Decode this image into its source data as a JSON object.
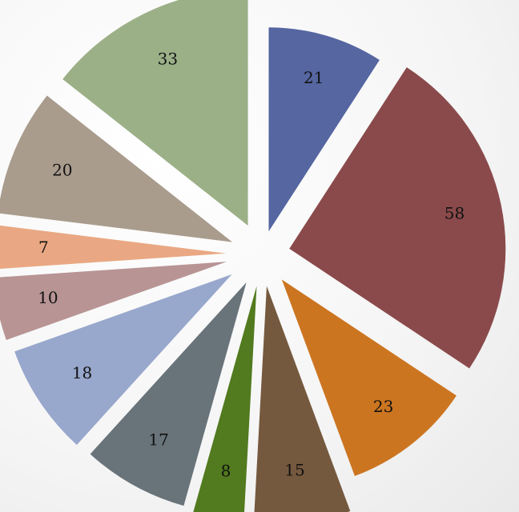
{
  "chart_data": {
    "type": "pie",
    "title": "",
    "slices": [
      {
        "value": 21,
        "label": "21",
        "color": "#5566a1"
      },
      {
        "value": 58,
        "label": "58",
        "color": "#8a4a4b"
      },
      {
        "value": 23,
        "label": "23",
        "color": "#cc7521"
      },
      {
        "value": 15,
        "label": "15",
        "color": "#75593e"
      },
      {
        "value": 8,
        "label": "8",
        "color": "#527a1f"
      },
      {
        "value": 17,
        "label": "17",
        "color": "#69737a"
      },
      {
        "value": 18,
        "label": "18",
        "color": "#98a7cc"
      },
      {
        "value": 10,
        "label": "10",
        "color": "#b89494"
      },
      {
        "value": 7,
        "label": "7",
        "color": "#e9a883"
      },
      {
        "value": 20,
        "label": "20",
        "color": "#a99c8d"
      },
      {
        "value": 33,
        "label": "33",
        "color": "#9cb088"
      }
    ],
    "start_angle": "12 o'clock",
    "direction": "clockwise",
    "exploded": true,
    "legend": "none"
  }
}
